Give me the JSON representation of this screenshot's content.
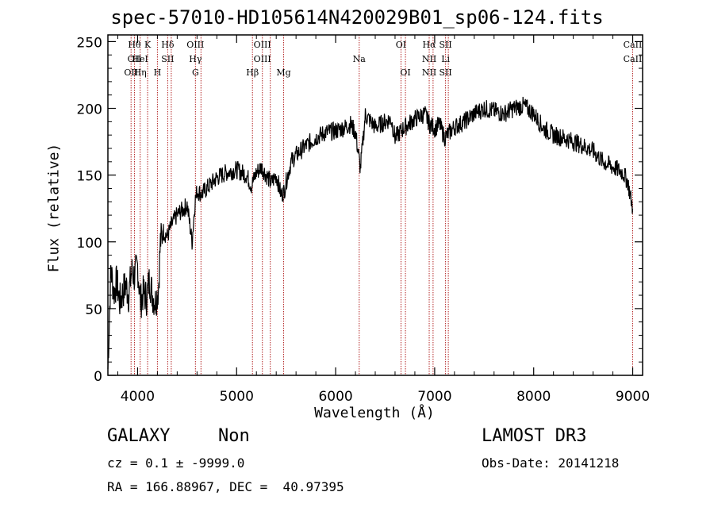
{
  "chart_data": {
    "type": "line",
    "title": "spec-57010-HD105614N420029B01_sp06-124.fits",
    "xlabel": "Wavelength (Å)",
    "ylabel": "Flux (relative)",
    "xlim": [
      3700,
      9100
    ],
    "ylim": [
      0,
      255
    ],
    "xticks": [
      4000,
      5000,
      6000,
      7000,
      8000,
      9000
    ],
    "xtick_labels": [
      "4000",
      "5000",
      "6000",
      "7000",
      "8000",
      "9000"
    ],
    "yticks": [
      0,
      50,
      100,
      150,
      200,
      250
    ],
    "ytick_labels": [
      "0",
      "50",
      "100",
      "150",
      "200",
      "250"
    ],
    "series": [
      {
        "name": "spectrum",
        "x": [
          3700,
          3730,
          3760,
          3790,
          3820,
          3850,
          3880,
          3910,
          3940,
          3970,
          4000,
          4030,
          4060,
          4090,
          4120,
          4150,
          4180,
          4210,
          4230,
          4260,
          4300,
          4340,
          4380,
          4420,
          4460,
          4500,
          4550,
          4580,
          4600,
          4650,
          4700,
          4800,
          4900,
          5000,
          5100,
          5150,
          5200,
          5250,
          5300,
          5350,
          5400,
          5450,
          5480,
          5500,
          5550,
          5600,
          5700,
          5800,
          5900,
          6000,
          6100,
          6150,
          6200,
          6250,
          6300,
          6400,
          6500,
          6560,
          6600,
          6700,
          6800,
          6900,
          6950,
          7000,
          7050,
          7100,
          7200,
          7300,
          7400,
          7500,
          7600,
          7700,
          7800,
          7900,
          8000,
          8100,
          8200,
          8300,
          8400,
          8500,
          8600,
          8700,
          8800,
          8900,
          8950,
          9000
        ],
        "y": [
          5,
          80,
          62,
          70,
          55,
          62,
          68,
          60,
          78,
          74,
          82,
          55,
          62,
          58,
          72,
          60,
          55,
          65,
          100,
          108,
          104,
          112,
          118,
          122,
          124,
          128,
          100,
          130,
          138,
          136,
          140,
          148,
          152,
          154,
          150,
          142,
          152,
          156,
          150,
          144,
          150,
          135,
          138,
          145,
          160,
          165,
          172,
          178,
          182,
          183,
          186,
          188,
          182,
          155,
          195,
          186,
          190,
          192,
          178,
          186,
          192,
          196,
          188,
          185,
          188,
          178,
          186,
          190,
          196,
          200,
          198,
          196,
          200,
          202,
          196,
          185,
          180,
          178,
          175,
          172,
          168,
          160,
          156,
          152,
          145,
          125
        ]
      }
    ],
    "lines": [
      {
        "wl": 3934,
        "labels": [
          "",
          "",
          "OII"
        ]
      },
      {
        "wl": 3968,
        "labels": [
          "Hθ",
          "OII",
          ""
        ]
      },
      {
        "wl": 4026,
        "labels": [
          "",
          "HeI",
          "Hη"
        ]
      },
      {
        "wl": 4101,
        "labels": [
          "K",
          "",
          ""
        ]
      },
      {
        "wl": 4200,
        "labels": [
          "",
          "",
          "H"
        ]
      },
      {
        "wl": 4304,
        "labels": [
          "Hδ",
          "SII",
          ""
        ]
      },
      {
        "wl": 4340,
        "labels": [
          "",
          "",
          ""
        ]
      },
      {
        "wl": 4584,
        "labels": [
          "OIII",
          "Hγ",
          "G"
        ]
      },
      {
        "wl": 4640,
        "labels": [
          "",
          "",
          ""
        ]
      },
      {
        "wl": 5160,
        "labels": [
          "",
          "",
          "Hβ"
        ]
      },
      {
        "wl": 5260,
        "labels": [
          "OIII",
          "OIII",
          ""
        ]
      },
      {
        "wl": 5340,
        "labels": [
          "",
          "",
          ""
        ]
      },
      {
        "wl": 5475,
        "labels": [
          "",
          "",
          "Mg"
        ]
      },
      {
        "wl": 6238,
        "labels": [
          "",
          "Na",
          ""
        ]
      },
      {
        "wl": 6660,
        "labels": [
          "OI",
          "",
          ""
        ]
      },
      {
        "wl": 6705,
        "labels": [
          "",
          "",
          "OI"
        ]
      },
      {
        "wl": 6945,
        "labels": [
          "Hα",
          "NII",
          "NII"
        ]
      },
      {
        "wl": 6984,
        "labels": [
          "",
          "",
          ""
        ]
      },
      {
        "wl": 7110,
        "labels": [
          "SII",
          "Li",
          "SII"
        ]
      },
      {
        "wl": 7138,
        "labels": [
          "",
          "",
          ""
        ]
      },
      {
        "wl": 9000,
        "labels": [
          "CaII",
          "CaII",
          ""
        ]
      }
    ]
  },
  "footer": {
    "class_label": "GALAXY",
    "subclass_label": "Non",
    "survey": "LAMOST DR3",
    "cz_text": "cz = 0.1 ± -9999.0",
    "obs_date": "Obs-Date: 20141218",
    "ra_dec": "RA = 166.88967, DEC =  40.97395"
  },
  "colors": {
    "line_color": "#b22222",
    "spectrum_color": "#000000",
    "axis_color": "#000000"
  }
}
